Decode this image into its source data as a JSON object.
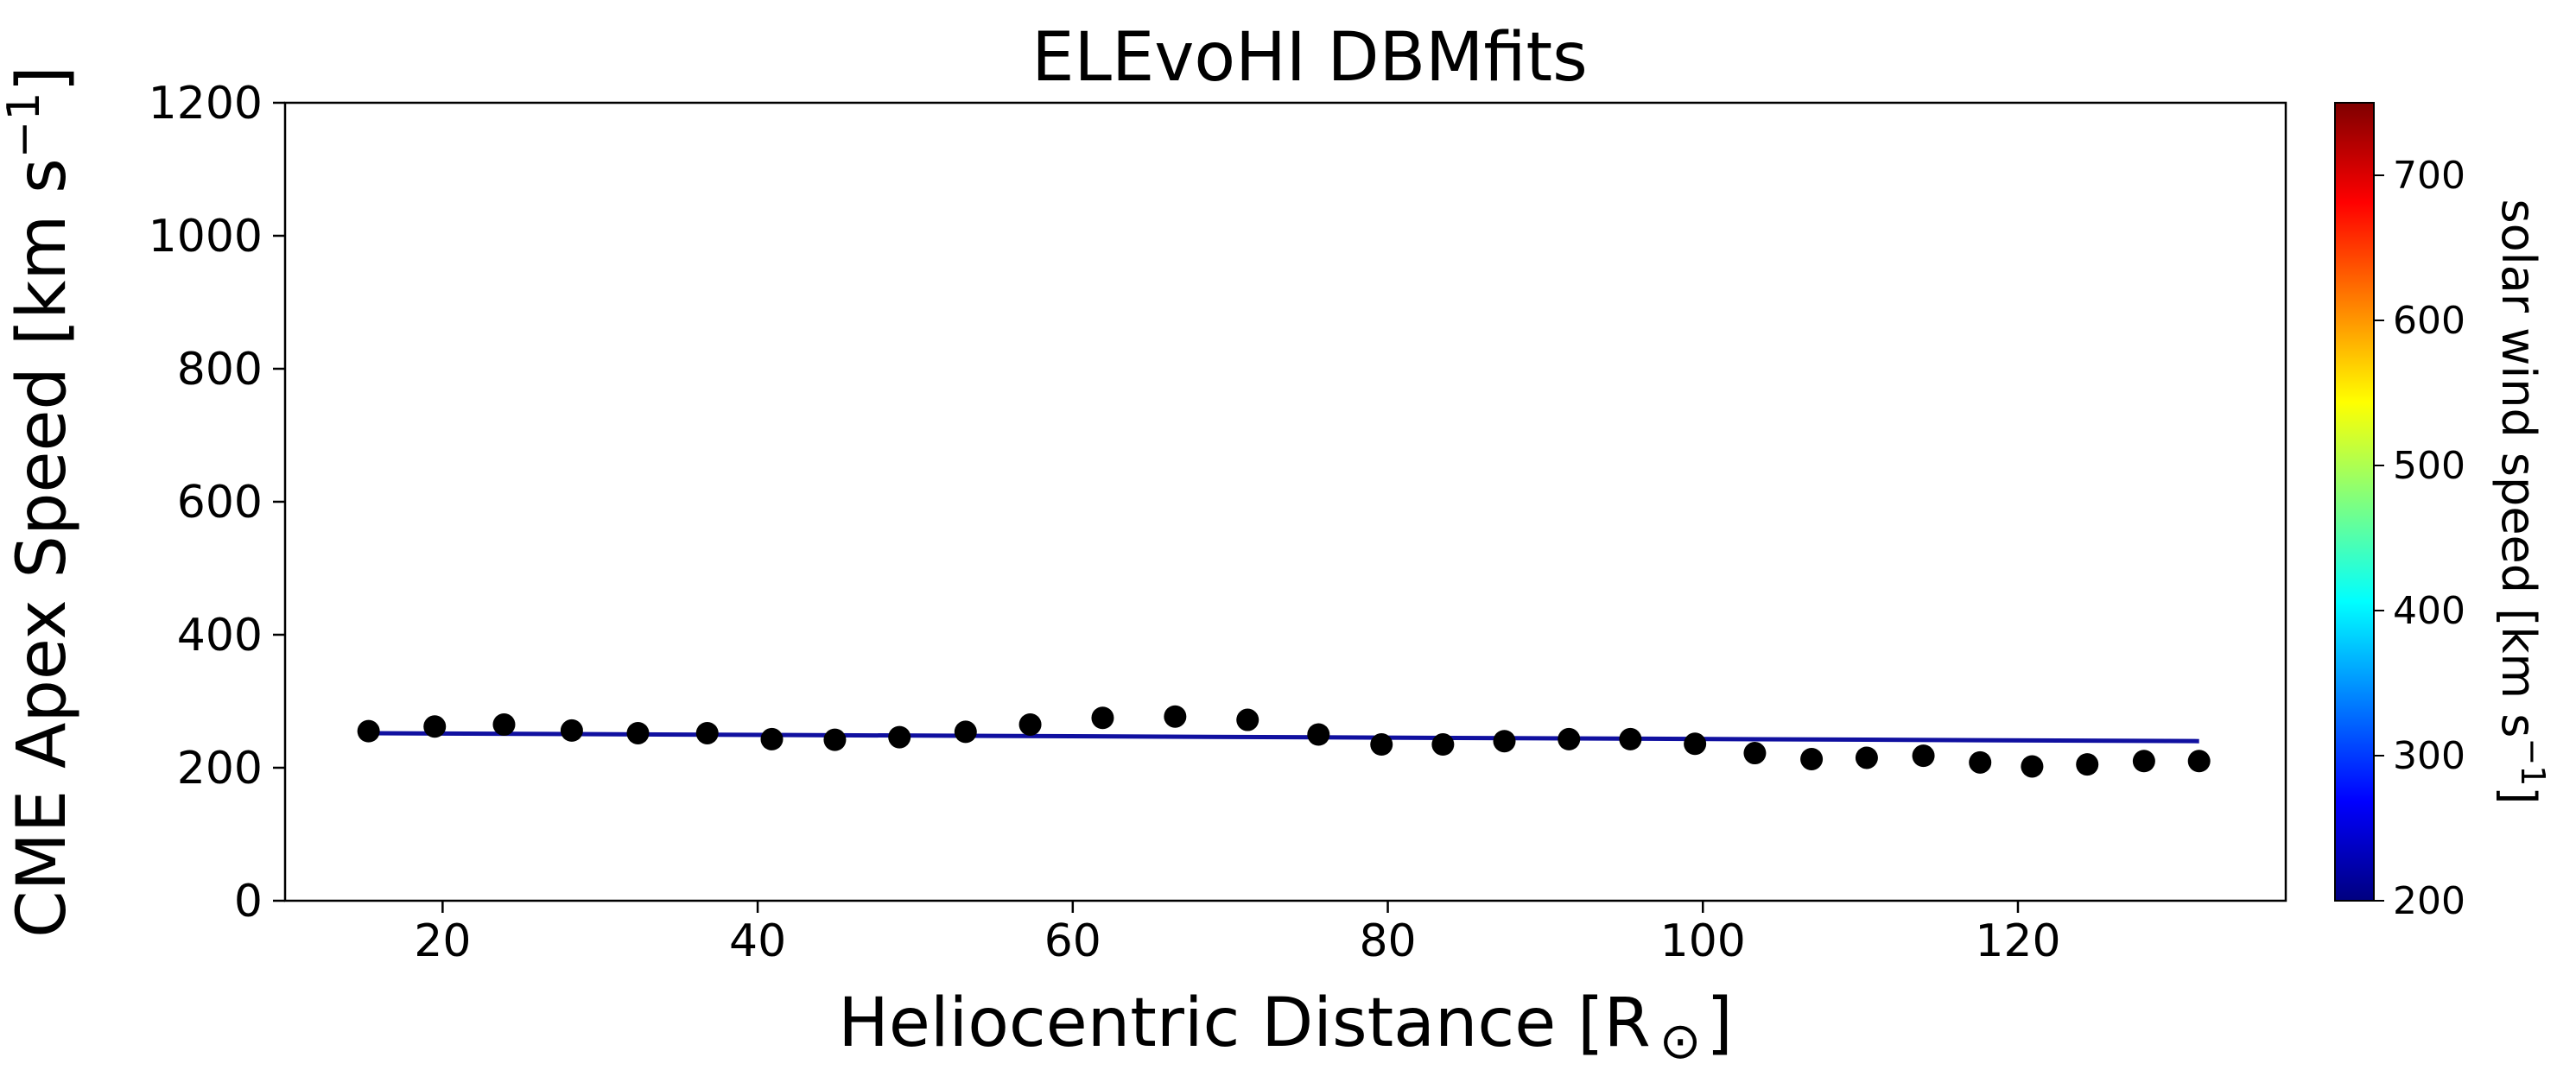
{
  "chart_data": {
    "type": "scatter",
    "title": "ELEvoHI DBMfits",
    "xlabel": "Heliocentric Distance [R",
    "xlabel_symbol": "⊙",
    "xlabel_close": "]",
    "ylabel": "CME Apex Speed [km s",
    "ylabel_sup": "−1",
    "ylabel_close": "]",
    "xlim": [
      10,
      137
    ],
    "ylim": [
      0,
      1200
    ],
    "grid": false,
    "xticks": [
      20,
      40,
      60,
      80,
      100,
      120
    ],
    "yticks": [
      0,
      200,
      400,
      600,
      800,
      1000,
      1200
    ],
    "series": [
      {
        "kind": "scatter",
        "color": "#000000",
        "points": [
          [
            15.3,
            255
          ],
          [
            19.5,
            262
          ],
          [
            23.9,
            265
          ],
          [
            28.2,
            256
          ],
          [
            32.4,
            252
          ],
          [
            36.8,
            252
          ],
          [
            40.9,
            243
          ],
          [
            44.9,
            242
          ],
          [
            49.0,
            246
          ],
          [
            53.2,
            254
          ],
          [
            57.3,
            265
          ],
          [
            61.9,
            275
          ],
          [
            66.5,
            277
          ],
          [
            71.1,
            272
          ],
          [
            75.6,
            250
          ],
          [
            79.6,
            235
          ],
          [
            83.5,
            235
          ],
          [
            87.4,
            240
          ],
          [
            91.5,
            243
          ],
          [
            95.4,
            243
          ],
          [
            99.5,
            236
          ],
          [
            103.3,
            222
          ],
          [
            106.9,
            213
          ],
          [
            110.4,
            215
          ],
          [
            114.0,
            218
          ],
          [
            117.6,
            208
          ],
          [
            120.9,
            202
          ],
          [
            124.4,
            205
          ],
          [
            128.0,
            210
          ],
          [
            131.5,
            210
          ]
        ]
      },
      {
        "kind": "line",
        "color": "#1010a0",
        "points": [
          [
            15.3,
            252
          ],
          [
            131.5,
            240
          ]
        ]
      }
    ],
    "colorbar": {
      "label": "solar wind speed [km s",
      "label_sup": "−1",
      "label_close": "]",
      "range": [
        200,
        750
      ],
      "ticks": [
        200,
        300,
        400,
        500,
        600,
        700
      ],
      "colormap": "jet",
      "colors": [
        "#00007f",
        "#0000ff",
        "#007fff",
        "#00ffff",
        "#7fff7f",
        "#ffff00",
        "#ff7f00",
        "#ff0000",
        "#7f0000"
      ]
    }
  }
}
